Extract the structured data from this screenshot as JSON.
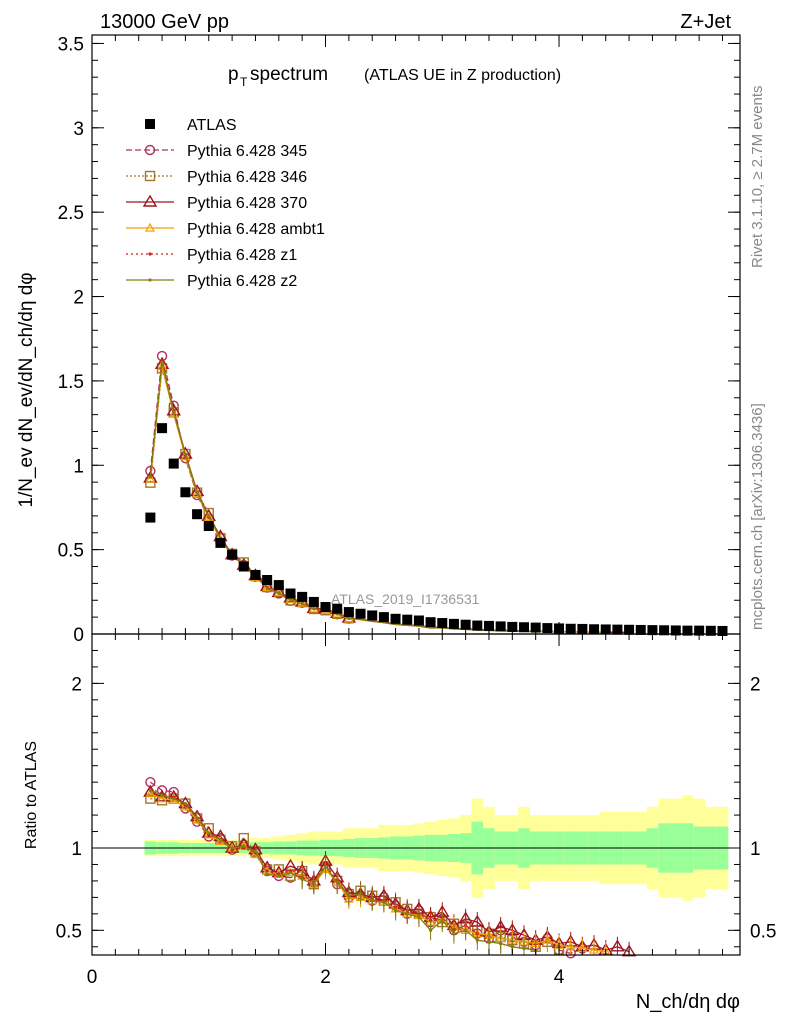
{
  "header": {
    "left": "13000 GeV pp",
    "right": "Z+Jet"
  },
  "side": {
    "rivet": "Rivet 3.1.10, ≥ 2.7M events",
    "mcplots": "mcplots.cern.ch [arXiv:1306.3436]"
  },
  "watermark": "ATLAS_2019_I1736531",
  "chart_data": {
    "type": "line",
    "title": "p_T spectrum",
    "title_main": "p",
    "title_sub": "T",
    "title_rest": " spectrum",
    "title_note": "(ATLAS UE in Z production)",
    "xlabel": "N_ch/dη dφ",
    "ylabel": "1/N_ev dN_ev/dN_ch/dη dφ",
    "ratio_ylabel": "Ratio to ATLAS",
    "xlim": [
      0,
      5.55
    ],
    "ylim": [
      0,
      3.55
    ],
    "ratio_ylim": [
      0.35,
      2.3
    ],
    "x_ticks": [
      "0",
      "2",
      "4"
    ],
    "y_ticks": [
      "0",
      "0.5",
      "1",
      "1.5",
      "2",
      "2.5",
      "3",
      "3.5"
    ],
    "ratio_ticks": [
      "0.5",
      "1",
      "2"
    ],
    "legend_position": "top-left",
    "x": [
      0.5,
      0.6,
      0.7,
      0.8,
      0.9,
      1.0,
      1.1,
      1.2,
      1.3,
      1.4,
      1.5,
      1.6,
      1.7,
      1.8,
      1.9,
      2.0,
      2.1,
      2.2,
      2.3,
      2.4,
      2.5,
      2.6,
      2.7,
      2.8,
      2.9,
      3.0,
      3.1,
      3.2,
      3.3,
      3.4,
      3.5,
      3.6,
      3.7,
      3.8,
      3.9,
      4.0,
      4.1,
      4.2,
      4.3,
      4.4,
      4.5,
      4.6,
      4.7,
      4.8,
      4.9,
      5.0,
      5.1,
      5.2,
      5.3,
      5.4
    ],
    "atlas": [
      0.69,
      1.22,
      1.01,
      0.84,
      0.71,
      0.64,
      0.54,
      0.47,
      0.4,
      0.35,
      0.32,
      0.29,
      0.24,
      0.22,
      0.19,
      0.16,
      0.15,
      0.13,
      0.12,
      0.11,
      0.1,
      0.09,
      0.085,
      0.08,
      0.07,
      0.065,
      0.06,
      0.055,
      0.05,
      0.048,
      0.045,
      0.042,
      0.04,
      0.038,
      0.035,
      0.033,
      0.031,
      0.03,
      0.028,
      0.027,
      0.026,
      0.025,
      0.024,
      0.023,
      0.022,
      0.021,
      0.02,
      0.02,
      0.019,
      0.018
    ],
    "band_inner": [
      0.04,
      0.035,
      0.035,
      0.03,
      0.03,
      0.03,
      0.03,
      0.03,
      0.03,
      0.035,
      0.035,
      0.04,
      0.04,
      0.045,
      0.045,
      0.05,
      0.05,
      0.055,
      0.06,
      0.06,
      0.065,
      0.07,
      0.07,
      0.075,
      0.08,
      0.08,
      0.085,
      0.09,
      0.16,
      0.12,
      0.1,
      0.1,
      0.12,
      0.1,
      0.1,
      0.1,
      0.1,
      0.1,
      0.1,
      0.1,
      0.1,
      0.1,
      0.1,
      0.12,
      0.15,
      0.15,
      0.15,
      0.13,
      0.13,
      0.13
    ],
    "band_outer": [
      0.05,
      0.05,
      0.05,
      0.05,
      0.05,
      0.05,
      0.05,
      0.05,
      0.05,
      0.06,
      0.06,
      0.07,
      0.08,
      0.09,
      0.1,
      0.1,
      0.1,
      0.12,
      0.12,
      0.12,
      0.14,
      0.14,
      0.14,
      0.15,
      0.16,
      0.17,
      0.18,
      0.2,
      0.3,
      0.25,
      0.2,
      0.2,
      0.25,
      0.2,
      0.2,
      0.2,
      0.2,
      0.2,
      0.2,
      0.22,
      0.22,
      0.22,
      0.22,
      0.25,
      0.3,
      0.3,
      0.32,
      0.3,
      0.25,
      0.25
    ],
    "series": [
      {
        "name": "Pythia 6.428 345",
        "color": "#b03060",
        "dash": "6,3",
        "marker": "circle",
        "ratio": [
          1.4,
          1.35,
          1.34,
          1.24,
          1.16,
          1.07,
          1.06,
          0.99,
          1.02,
          0.97,
          0.86,
          0.83,
          0.82,
          0.84,
          0.79,
          0.89,
          0.78,
          0.7,
          0.71,
          0.68,
          0.7,
          0.65,
          0.6,
          0.62,
          0.55,
          0.57,
          0.5,
          0.53,
          0.48,
          0.45,
          0.5,
          0.46,
          0.43,
          0.41,
          0.45,
          0.38,
          0.36,
          0.39
        ]
      },
      {
        "name": "Pythia 6.428 346",
        "color": "#a07828",
        "dash": "2,2",
        "marker": "square",
        "ratio": [
          1.3,
          1.29,
          1.3,
          1.27,
          1.18,
          1.12,
          1.05,
          1.01,
          1.06,
          0.98,
          0.87,
          0.87,
          0.83,
          0.86,
          0.78,
          0.88,
          0.8,
          0.72,
          0.74,
          0.71,
          0.68,
          0.67,
          0.63,
          0.6,
          0.58,
          0.55,
          0.54,
          0.52,
          0.5,
          0.48,
          0.46,
          0.44,
          0.42,
          0.4,
          0.43,
          0.38
        ]
      },
      {
        "name": "Pythia 6.428 370",
        "color": "#a0141e",
        "dash": "",
        "marker": "triangle",
        "ratio": [
          1.34,
          1.31,
          1.31,
          1.27,
          1.19,
          1.09,
          1.07,
          1.0,
          1.02,
          0.99,
          0.88,
          0.85,
          0.89,
          0.86,
          0.8,
          0.92,
          0.82,
          0.73,
          0.72,
          0.7,
          0.71,
          0.66,
          0.62,
          0.63,
          0.58,
          0.61,
          0.53,
          0.57,
          0.55,
          0.49,
          0.52,
          0.5,
          0.47,
          0.44,
          0.46,
          0.42,
          0.43,
          0.4,
          0.41,
          0.38,
          0.4,
          0.37
        ]
      },
      {
        "name": "Pythia 6.428 ambt1",
        "color": "#f0a000",
        "dash": "",
        "marker": "triangle-small",
        "ratio": [
          1.33,
          1.3,
          1.29,
          1.25,
          1.17,
          1.08,
          1.04,
          1.0,
          1.01,
          0.96,
          0.86,
          0.84,
          0.85,
          0.83,
          0.78,
          0.87,
          0.79,
          0.69,
          0.7,
          0.68,
          0.67,
          0.63,
          0.6,
          0.59,
          0.55,
          0.56,
          0.52,
          0.5,
          0.48,
          0.47,
          0.45,
          0.44,
          0.43,
          0.42,
          0.44,
          0.41,
          0.4,
          0.39,
          0.38,
          0.37
        ]
      },
      {
        "name": "Pythia 6.428 z1",
        "color": "#d01c1c",
        "dash": "2,3",
        "marker": "dot",
        "ratio": [
          1.36,
          1.33,
          1.31,
          1.26,
          1.18,
          1.08,
          1.05,
          0.99,
          1.0,
          0.97,
          0.86,
          0.84,
          0.86,
          0.82,
          0.79,
          0.9,
          0.8,
          0.71,
          0.73,
          0.69,
          0.68,
          0.64,
          0.61,
          0.6,
          0.56,
          0.58,
          0.5,
          0.53,
          0.48,
          0.44,
          0.42,
          0.4,
          0.39,
          0.38
        ]
      },
      {
        "name": "Pythia 6.428 z2",
        "color": "#808010",
        "dash": "",
        "marker": "dot",
        "ratio": [
          1.35,
          1.32,
          1.3,
          1.27,
          1.18,
          1.09,
          1.05,
          1.0,
          1.01,
          0.98,
          0.84,
          0.83,
          0.85,
          0.81,
          0.78,
          0.89,
          0.79,
          0.71,
          0.72,
          0.68,
          0.67,
          0.62,
          0.6,
          0.58,
          0.5,
          0.56,
          0.48,
          0.5,
          0.44,
          0.43,
          0.42,
          0.4,
          0.39,
          0.38
        ]
      }
    ]
  }
}
